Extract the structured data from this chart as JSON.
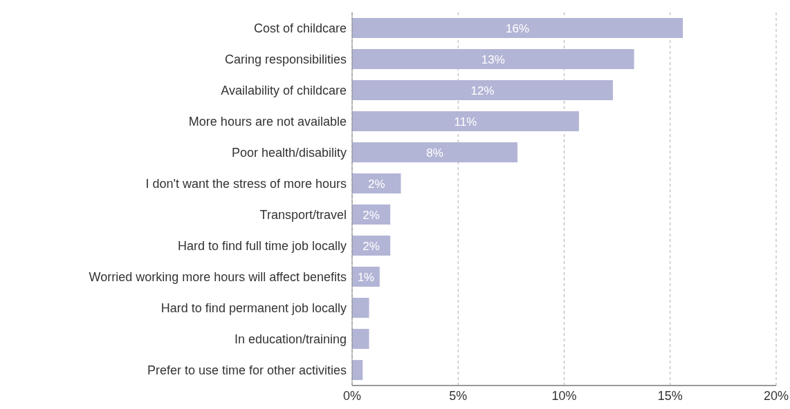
{
  "chart_data": {
    "type": "bar",
    "orientation": "horizontal",
    "categories": [
      "Cost of childcare",
      "Caring responsibilities",
      "Availability of childcare",
      "More hours are not available",
      "Poor health/disability",
      "I don't want the stress of more hours",
      "Transport/travel",
      "Hard to find full time job locally",
      "Worried working more hours will affect benefits",
      "Hard to find permanent job locally",
      "In education/training",
      "Prefer to use time for other activities"
    ],
    "values": [
      15.6,
      13.3,
      12.3,
      10.7,
      7.8,
      2.3,
      1.8,
      1.8,
      1.3,
      0.8,
      0.8,
      0.5
    ],
    "value_labels": [
      "16%",
      "13%",
      "12%",
      "11%",
      "8%",
      "2%",
      "2%",
      "2%",
      "1%",
      null,
      null,
      null
    ],
    "color": "#b3b5d6",
    "xlim": [
      0,
      20
    ],
    "xticks": [
      {
        "value": 0,
        "label": "0%"
      },
      {
        "value": 5,
        "label": "5%"
      },
      {
        "value": 10,
        "label": "10%"
      },
      {
        "value": 15,
        "label": "15%"
      },
      {
        "value": 20,
        "label": "20%"
      }
    ],
    "grid": "x"
  }
}
